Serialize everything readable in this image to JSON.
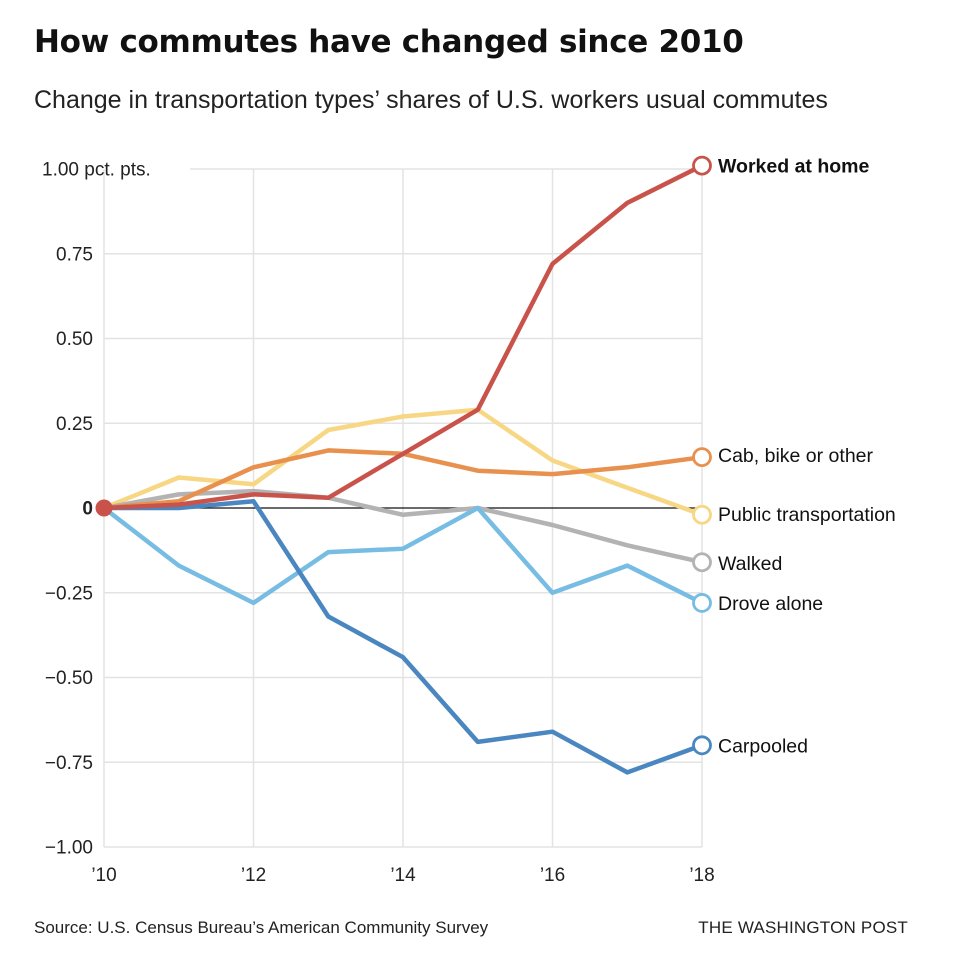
{
  "title": "How commutes have changed since 2010",
  "subtitle": "Change in transportation types’ shares of U.S. workers usual commutes",
  "source": "Source: U.S. Census Bureau’s American Community Survey",
  "credit": "THE WASHINGTON POST",
  "chart_data": {
    "type": "line",
    "x": [
      2010,
      2011,
      2012,
      2013,
      2014,
      2015,
      2016,
      2017,
      2018
    ],
    "xticks": [
      2010,
      2012,
      2014,
      2016,
      2018
    ],
    "xtick_labels": [
      "’10",
      "’12",
      "’14",
      "’16",
      "’18"
    ],
    "xlim": [
      2010,
      2018
    ],
    "ylim": [
      -1.0,
      1.0
    ],
    "yticks": [
      1.0,
      0.75,
      0.5,
      0.25,
      0,
      -0.25,
      -0.5,
      -0.75,
      -1.0
    ],
    "ytick_labels": [
      "1.00 pct. pts.",
      "0.75",
      "0.50",
      "0.25",
      "0",
      "−0.25",
      "−0.50",
      "−0.75",
      "−1.00"
    ],
    "grid": true,
    "series": [
      {
        "name": "Public transportation",
        "color": "#f7d784",
        "label_weight": "normal",
        "values": [
          0,
          0.09,
          0.07,
          0.23,
          0.27,
          0.29,
          0.14,
          0.06,
          -0.02
        ]
      },
      {
        "name": "Walked",
        "color": "#b3b3b3",
        "label_weight": "normal",
        "values": [
          0,
          0.04,
          0.05,
          0.03,
          -0.02,
          0.0,
          -0.05,
          -0.11,
          -0.16
        ]
      },
      {
        "name": "Cab, bike or other",
        "color": "#e8914f",
        "label_weight": "normal",
        "values": [
          0,
          0.02,
          0.12,
          0.17,
          0.16,
          0.11,
          0.1,
          0.12,
          0.15
        ]
      },
      {
        "name": "Drove alone",
        "color": "#77bde3",
        "label_weight": "normal",
        "values": [
          0,
          -0.17,
          -0.28,
          -0.13,
          -0.12,
          0.0,
          -0.25,
          -0.17,
          -0.28
        ]
      },
      {
        "name": "Carpooled",
        "color": "#4a86bf",
        "label_weight": "normal",
        "values": [
          0,
          0.0,
          0.02,
          -0.32,
          -0.44,
          -0.69,
          -0.66,
          -0.78,
          -0.7
        ]
      },
      {
        "name": "Worked at home",
        "color": "#c9534a",
        "label_weight": "bold",
        "values": [
          0,
          0.01,
          0.04,
          0.03,
          0.16,
          0.29,
          0.72,
          0.9,
          1.01
        ]
      }
    ]
  }
}
